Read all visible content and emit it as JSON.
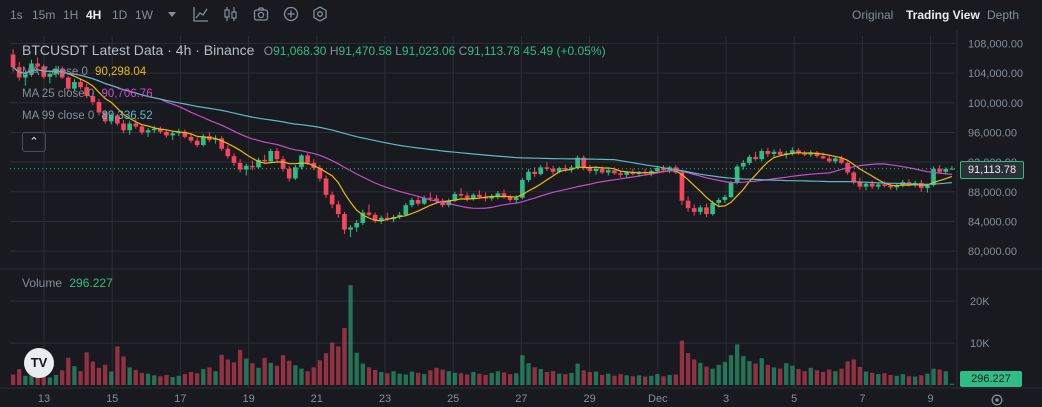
{
  "toolbar": {
    "timeframes": [
      "1s",
      "15m",
      "1H",
      "4H",
      "1D",
      "1W"
    ],
    "active_timeframe": "4H",
    "views": [
      "Original",
      "Trading View",
      "Depth"
    ],
    "active_view": "Trading View",
    "tool_icons": [
      "dropdown-caret-icon",
      "line-chart-icon",
      "candlestick-icon",
      "camera-icon",
      "add-indicator-icon",
      "settings-icon"
    ]
  },
  "legend": {
    "symbol": "BTCUSDT Latest Data · 4h · Binance",
    "o_label": "O",
    "o": "91,068.30",
    "h_label": "H",
    "h": "91,470.58",
    "l_label": "L",
    "l": "91,023.06",
    "c_label": "C",
    "c": "91,113.78",
    "change": "45.49 (+0.05%)",
    "ma7_label": "MA 7 close 0",
    "ma7": "90,298.04",
    "ma25_label": "MA 25 close 0",
    "ma25": "90,706.76",
    "ma99_label": "MA 99 close 0",
    "ma99": "89,336.52",
    "volume_label": "Volume",
    "volume": "296.227"
  },
  "colors": {
    "up": "#2ebd85",
    "down": "#f6465d",
    "ma7": "#f0b90b",
    "ma25": "#c64ec8",
    "ma99": "#5fb8c2",
    "background": "#181a20",
    "grid": "#2b2f36"
  },
  "chart_data": {
    "type": "candlestick",
    "symbol": "BTCUSDT",
    "interval": "4h",
    "price_axis_ticks": [
      "108,000.00",
      "104,000.00",
      "100,000.00",
      "96,000.00",
      "92,000.00",
      "88,000.00",
      "84,000.00",
      "80,000.00"
    ],
    "price_ylim": [
      78000,
      109000
    ],
    "volume_axis_ticks": [
      "20K",
      "10K"
    ],
    "volume_ylim": [
      0,
      26000
    ],
    "x_tick_labels": [
      "13",
      "15",
      "17",
      "19",
      "21",
      "23",
      "25",
      "27",
      "29",
      "Dec",
      "3",
      "5",
      "7",
      "9"
    ],
    "last_price_tag": "91,113.78",
    "last_volume_tag": "296.227",
    "candles_ohlc": [
      [
        106500,
        107200,
        104200,
        104800
      ],
      [
        104800,
        105500,
        103000,
        103400
      ],
      [
        103400,
        104000,
        102300,
        103800
      ],
      [
        103800,
        105800,
        103500,
        105300
      ],
      [
        105300,
        106100,
        104500,
        104900
      ],
      [
        104900,
        105200,
        103200,
        103500
      ],
      [
        103500,
        104100,
        102600,
        103900
      ],
      [
        103900,
        105000,
        103400,
        104600
      ],
      [
        104600,
        104900,
        103200,
        103400
      ],
      [
        103400,
        103600,
        101600,
        101900
      ],
      [
        101900,
        103200,
        101500,
        102800
      ],
      [
        102800,
        103300,
        101800,
        102100
      ],
      [
        102100,
        102600,
        100600,
        100900
      ],
      [
        100900,
        101300,
        99700,
        100100
      ],
      [
        100100,
        100500,
        98300,
        98700
      ],
      [
        98700,
        99000,
        97200,
        97500
      ],
      [
        97500,
        98600,
        97100,
        98300
      ],
      [
        98300,
        98500,
        96900,
        97200
      ],
      [
        97200,
        97700,
        95900,
        96300
      ],
      [
        96300,
        97600,
        95700,
        97200
      ],
      [
        97200,
        97800,
        96500,
        96800
      ],
      [
        96800,
        97100,
        95700,
        96000
      ],
      [
        96000,
        96600,
        95400,
        96300
      ],
      [
        96300,
        96900,
        95900,
        96500
      ],
      [
        96500,
        96800,
        95800,
        96100
      ],
      [
        96100,
        96400,
        95300,
        95600
      ],
      [
        95600,
        96200,
        95000,
        95900
      ],
      [
        95900,
        96500,
        95500,
        96100
      ],
      [
        96100,
        96400,
        95200,
        95400
      ],
      [
        95400,
        95900,
        94600,
        94900
      ],
      [
        94900,
        95300,
        94000,
        94300
      ],
      [
        94300,
        95800,
        94100,
        95500
      ],
      [
        95500,
        96000,
        94700,
        95000
      ],
      [
        95000,
        95600,
        94500,
        95200
      ],
      [
        95200,
        95500,
        93500,
        93800
      ],
      [
        93800,
        94300,
        92500,
        92800
      ],
      [
        92800,
        93200,
        91500,
        91900
      ],
      [
        91900,
        92400,
        90600,
        91000
      ],
      [
        91000,
        91800,
        90200,
        91500
      ],
      [
        91500,
        92200,
        90900,
        91300
      ],
      [
        91300,
        92600,
        91100,
        92300
      ],
      [
        92300,
        93000,
        91800,
        92100
      ],
      [
        92100,
        93800,
        91900,
        93500
      ],
      [
        93500,
        93900,
        92100,
        92400
      ],
      [
        92400,
        92800,
        90700,
        91100
      ],
      [
        91100,
        91500,
        89400,
        89800
      ],
      [
        89800,
        91600,
        89600,
        91300
      ],
      [
        91300,
        93100,
        91000,
        92900
      ],
      [
        92900,
        93200,
        91600,
        91900
      ],
      [
        91900,
        92400,
        90900,
        91200
      ],
      [
        91200,
        91600,
        89400,
        89800
      ],
      [
        89800,
        90200,
        87200,
        87600
      ],
      [
        87600,
        88000,
        85800,
        86300
      ],
      [
        86300,
        86800,
        84500,
        85000
      ],
      [
        85000,
        85300,
        82300,
        82900
      ],
      [
        82900,
        83500,
        81900,
        83200
      ],
      [
        83200,
        84200,
        82600,
        83800
      ],
      [
        83800,
        85600,
        83500,
        85200
      ],
      [
        85200,
        86300,
        84700,
        84900
      ],
      [
        84900,
        85200,
        83800,
        84100
      ],
      [
        84100,
        84800,
        83700,
        84500
      ],
      [
        84500,
        85200,
        84100,
        84300
      ],
      [
        84300,
        84900,
        83900,
        84600
      ],
      [
        84600,
        85300,
        84300,
        84900
      ],
      [
        84900,
        86500,
        84700,
        86200
      ],
      [
        86200,
        87200,
        85900,
        86900
      ],
      [
        86900,
        87400,
        86100,
        86400
      ],
      [
        86400,
        87500,
        86200,
        87200
      ],
      [
        87200,
        87900,
        86700,
        87100
      ],
      [
        87100,
        87600,
        86400,
        86800
      ],
      [
        86800,
        87100,
        85900,
        86200
      ],
      [
        86200,
        87100,
        85900,
        86800
      ],
      [
        86800,
        88000,
        86600,
        87700
      ],
      [
        87700,
        88500,
        87200,
        87500
      ],
      [
        87500,
        87900,
        86700,
        87000
      ],
      [
        87000,
        87800,
        86800,
        87600
      ],
      [
        87600,
        88200,
        87100,
        87300
      ],
      [
        87300,
        87900,
        86700,
        87100
      ],
      [
        87100,
        87700,
        86800,
        87400
      ],
      [
        87400,
        88100,
        87000,
        87800
      ],
      [
        87800,
        88300,
        87100,
        87300
      ],
      [
        87300,
        87600,
        86600,
        86900
      ],
      [
        86900,
        87500,
        86500,
        87200
      ],
      [
        87200,
        89900,
        87000,
        89600
      ],
      [
        89600,
        91100,
        89300,
        90700
      ],
      [
        90700,
        91300,
        90000,
        90400
      ],
      [
        90400,
        91600,
        90200,
        91300
      ],
      [
        91300,
        92000,
        90800,
        91100
      ],
      [
        91100,
        91500,
        90300,
        90700
      ],
      [
        90700,
        91400,
        90500,
        91200
      ],
      [
        91200,
        91700,
        90700,
        91000
      ],
      [
        91000,
        91600,
        90600,
        91300
      ],
      [
        91300,
        92900,
        91000,
        92600
      ],
      [
        92600,
        92900,
        90900,
        91200
      ],
      [
        91200,
        91600,
        90500,
        90800
      ],
      [
        90800,
        91500,
        90300,
        91100
      ],
      [
        91100,
        91400,
        90400,
        90600
      ],
      [
        90600,
        91200,
        90200,
        90900
      ],
      [
        90900,
        91300,
        90300,
        90500
      ],
      [
        90500,
        90900,
        89900,
        90300
      ],
      [
        90300,
        90800,
        89900,
        90600
      ],
      [
        90600,
        91100,
        90200,
        90400
      ],
      [
        90400,
        90800,
        90000,
        90700
      ],
      [
        90700,
        91100,
        90300,
        90500
      ],
      [
        90500,
        91000,
        90100,
        90800
      ],
      [
        90800,
        91500,
        90500,
        91200
      ],
      [
        91200,
        91600,
        90600,
        90900
      ],
      [
        90900,
        91500,
        90500,
        91300
      ],
      [
        91300,
        91600,
        90400,
        90600
      ],
      [
        90600,
        90900,
        86200,
        86800
      ],
      [
        86800,
        87400,
        85300,
        85800
      ],
      [
        85800,
        86300,
        84800,
        85300
      ],
      [
        85300,
        86200,
        84900,
        85900
      ],
      [
        85900,
        86400,
        84600,
        85000
      ],
      [
        85000,
        86800,
        84800,
        86500
      ],
      [
        86500,
        87200,
        85900,
        86900
      ],
      [
        86900,
        87600,
        86500,
        87300
      ],
      [
        87300,
        89500,
        87100,
        89200
      ],
      [
        89200,
        91700,
        89000,
        91400
      ],
      [
        91400,
        92300,
        91000,
        91900
      ],
      [
        91900,
        93000,
        91600,
        92700
      ],
      [
        92700,
        93400,
        92200,
        92400
      ],
      [
        92400,
        93800,
        92100,
        93500
      ],
      [
        93500,
        93900,
        92700,
        93100
      ],
      [
        93100,
        93700,
        92600,
        93400
      ],
      [
        93400,
        93800,
        92800,
        93000
      ],
      [
        93000,
        93500,
        92500,
        93200
      ],
      [
        93200,
        94000,
        92900,
        93600
      ],
      [
        93600,
        93900,
        93000,
        93200
      ],
      [
        93200,
        93500,
        92800,
        93000
      ],
      [
        93000,
        93600,
        92700,
        93300
      ],
      [
        93300,
        93500,
        92600,
        92800
      ],
      [
        92800,
        93300,
        92400,
        92500
      ],
      [
        92500,
        92900,
        91900,
        92100
      ],
      [
        92100,
        92800,
        91800,
        92500
      ],
      [
        92500,
        92800,
        91700,
        91900
      ],
      [
        91900,
        92100,
        90300,
        90600
      ],
      [
        90600,
        90800,
        89000,
        89300
      ],
      [
        89300,
        89900,
        88300,
        88700
      ],
      [
        88700,
        89400,
        88200,
        89100
      ],
      [
        89100,
        89500,
        88400,
        88700
      ],
      [
        88700,
        89300,
        88300,
        89000
      ],
      [
        89000,
        89400,
        88600,
        88800
      ],
      [
        88800,
        89200,
        88300,
        88600
      ],
      [
        88600,
        89100,
        88200,
        88900
      ],
      [
        88900,
        89600,
        88600,
        89300
      ],
      [
        89300,
        89700,
        88700,
        88900
      ],
      [
        88900,
        89500,
        88600,
        89200
      ],
      [
        89200,
        89600,
        88000,
        88500
      ],
      [
        88500,
        89100,
        87900,
        88900
      ],
      [
        88900,
        91400,
        88700,
        91100
      ],
      [
        91100,
        91600,
        90500,
        90700
      ],
      [
        90700,
        91300,
        90300,
        91068
      ],
      [
        91068.3,
        91470.58,
        91023.06,
        91113.78
      ]
    ],
    "volumes": [
      2500,
      3800,
      2200,
      3600,
      2600,
      2100,
      1800,
      2400,
      3500,
      6500,
      4500,
      3300,
      7800,
      5600,
      4100,
      4800,
      3200,
      9200,
      6800,
      4200,
      3600,
      2900,
      2700,
      2300,
      2100,
      2400,
      1900,
      2200,
      2600,
      3100,
      2800,
      3800,
      4200,
      3300,
      7200,
      6100,
      5400,
      8400,
      6300,
      5200,
      4100,
      6500,
      5300,
      4600,
      7100,
      5800,
      4700,
      3900,
      3300,
      4200,
      5900,
      7600,
      10100,
      9200,
      13600,
      23800,
      7700,
      5100,
      4200,
      3600,
      3100,
      2800,
      3300,
      2700,
      2500,
      3200,
      2900,
      2600,
      3500,
      4100,
      3700,
      3300,
      2900,
      2800,
      2500,
      3100,
      2700,
      2400,
      2900,
      3300,
      3000,
      2600,
      2800,
      7100,
      5200,
      4200,
      3800,
      3100,
      3300,
      2700,
      2600,
      2900,
      5100,
      3500,
      3100,
      3200,
      2400,
      2700,
      2200,
      2600,
      2300,
      2100,
      2300,
      2000,
      2200,
      2600,
      2100,
      2400,
      2500,
      10600,
      7600,
      6100,
      5300,
      4400,
      3900,
      4800,
      5500,
      7100,
      9700,
      6900,
      5700,
      5100,
      6400,
      4800,
      4200,
      3900,
      5200,
      4600,
      3800,
      3300,
      4100,
      3500,
      3100,
      3700,
      3300,
      3900,
      5600,
      6100,
      4300,
      3200,
      2900,
      2600,
      2800,
      2400,
      2200,
      2600,
      2100,
      2000,
      2300,
      2700,
      3900,
      3700,
      3300,
      296
    ],
    "ma7_last": 90298.04,
    "ma25_last": 90706.76,
    "ma99_last": 89336.52
  }
}
